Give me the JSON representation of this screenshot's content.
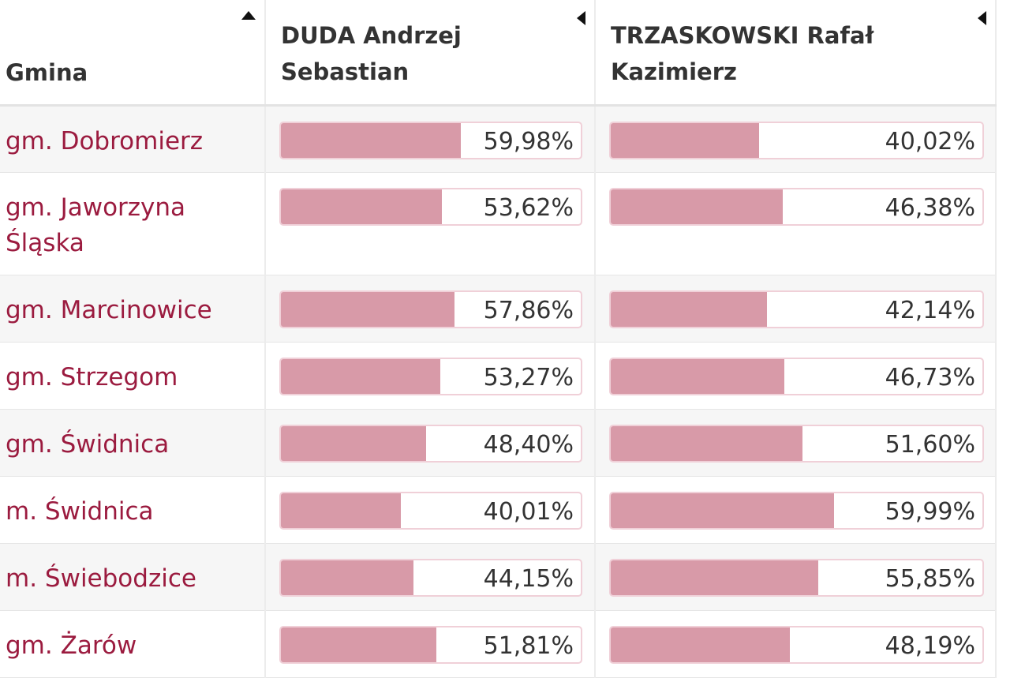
{
  "header": {
    "gmina": "Gmina",
    "duda_line1": "DUDA Andrzej",
    "duda_line2": "Sebastian",
    "trz_line1": "TRZASKOWSKI Rafał",
    "trz_line2": "Kazimierz"
  },
  "colors": {
    "link": "#9b1b3f",
    "bar_fill": "#d89aa8",
    "bar_border": "#f0d0d8"
  },
  "rows": [
    {
      "gmina": "gm. Dobromierz",
      "duda": "59,98%",
      "duda_pct": 59.98,
      "trz": "40,02%",
      "trz_pct": 40.02
    },
    {
      "gmina": "gm. Jaworzyna Śląska",
      "duda": "53,62%",
      "duda_pct": 53.62,
      "trz": "46,38%",
      "trz_pct": 46.38
    },
    {
      "gmina": "gm. Marcinowice",
      "duda": "57,86%",
      "duda_pct": 57.86,
      "trz": "42,14%",
      "trz_pct": 42.14
    },
    {
      "gmina": "gm. Strzegom",
      "duda": "53,27%",
      "duda_pct": 53.27,
      "trz": "46,73%",
      "trz_pct": 46.73
    },
    {
      "gmina": "gm. Świdnica",
      "duda": "48,40%",
      "duda_pct": 48.4,
      "trz": "51,60%",
      "trz_pct": 51.6
    },
    {
      "gmina": "m. Świdnica",
      "duda": "40,01%",
      "duda_pct": 40.01,
      "trz": "59,99%",
      "trz_pct": 59.99
    },
    {
      "gmina": "m. Świebodzice",
      "duda": "44,15%",
      "duda_pct": 44.15,
      "trz": "55,85%",
      "trz_pct": 55.85
    },
    {
      "gmina": "gm. Żarów",
      "duda": "51,81%",
      "duda_pct": 51.81,
      "trz": "48,19%",
      "trz_pct": 48.19
    }
  ]
}
